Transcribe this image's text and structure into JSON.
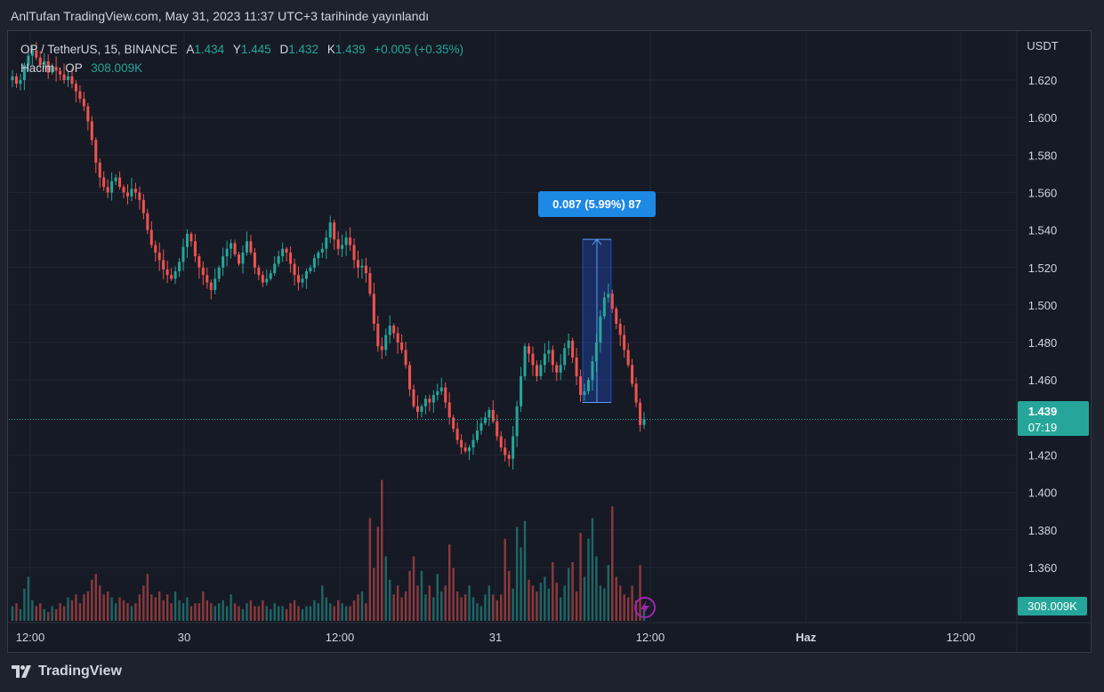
{
  "header": {
    "publish_note": "AnlTufan TradingView.com, May 31, 2023 11:37 UTC+3 tarihinde yayınlandı"
  },
  "legend": {
    "symbol": "OP / TetherUS, 15, BINANCE",
    "open_label": "A",
    "open": "1.434",
    "high_label": "Y",
    "high": "1.445",
    "low_label": "D",
    "low": "1.432",
    "close_label": "K",
    "close": "1.439",
    "change": "+0.005 (+0.35%)",
    "volume_label": "Hacim · OP",
    "volume": "308.009K"
  },
  "price_axis": {
    "unit": "USDT",
    "ticks": [
      "1.620",
      "1.600",
      "1.580",
      "1.560",
      "1.540",
      "1.520",
      "1.500",
      "1.480",
      "1.460",
      "1.420",
      "1.400",
      "1.380",
      "1.360"
    ],
    "last_price": "1.439",
    "countdown": "07:19",
    "volume_badge": "308.009K"
  },
  "time_axis": {
    "ticks": [
      "12:00",
      "30",
      "12:00",
      "31",
      "12:00",
      "Haz",
      "12:00"
    ]
  },
  "measure": {
    "label": "0.087 (5.99%) 87",
    "from": 1.448,
    "to": 1.535
  },
  "brand": {
    "name": "TradingView"
  },
  "colors": {
    "up": "#26a69a",
    "down": "#ef5350",
    "bg": "#161a25",
    "grid": "#232733",
    "measure": "#2962ff"
  },
  "chart_data": {
    "type": "candlestick",
    "interval": "15",
    "y_range": [
      1.335,
      1.64
    ],
    "price_path": [
      1.622,
      1.618,
      1.62,
      1.628,
      1.633,
      1.636,
      1.632,
      1.628,
      1.63,
      1.624,
      1.627,
      1.625,
      1.623,
      1.62,
      1.622,
      1.618,
      1.614,
      1.61,
      1.606,
      1.598,
      1.588,
      1.576,
      1.568,
      1.563,
      1.56,
      1.566,
      1.568,
      1.563,
      1.56,
      1.558,
      1.562,
      1.56,
      1.556,
      1.549,
      1.54,
      1.532,
      1.528,
      1.524,
      1.519,
      1.516,
      1.514,
      1.518,
      1.523,
      1.531,
      1.538,
      1.534,
      1.526,
      1.52,
      1.516,
      1.512,
      1.508,
      1.514,
      1.52,
      1.526,
      1.53,
      1.533,
      1.527,
      1.522,
      1.528,
      1.534,
      1.528,
      1.52,
      1.516,
      1.512,
      1.514,
      1.517,
      1.522,
      1.526,
      1.53,
      1.528,
      1.522,
      1.516,
      1.512,
      1.514,
      1.518,
      1.52,
      1.525,
      1.528,
      1.53,
      1.536,
      1.544,
      1.535,
      1.53,
      1.532,
      1.536,
      1.532,
      1.524,
      1.52,
      1.521,
      1.517,
      1.506,
      1.49,
      1.478,
      1.476,
      1.484,
      1.489,
      1.485,
      1.48,
      1.476,
      1.468,
      1.455,
      1.446,
      1.443,
      1.446,
      1.45,
      1.448,
      1.452,
      1.454,
      1.456,
      1.448,
      1.44,
      1.434,
      1.428,
      1.424,
      1.422,
      1.424,
      1.428,
      1.433,
      1.437,
      1.44,
      1.444,
      1.438,
      1.43,
      1.424,
      1.42,
      1.418,
      1.43,
      1.446,
      1.462,
      1.478,
      1.474,
      1.468,
      1.462,
      1.468,
      1.474,
      1.476,
      1.468,
      1.464,
      1.468,
      1.477,
      1.481,
      1.472,
      1.462,
      1.452,
      1.454,
      1.46,
      1.47,
      1.48,
      1.494,
      1.504,
      1.506,
      1.498,
      1.49,
      1.484,
      1.476,
      1.468,
      1.458,
      1.448,
      1.436,
      1.439
    ],
    "volume_path": [
      0.05,
      0.06,
      0.04,
      0.11,
      0.15,
      0.07,
      0.05,
      0.06,
      0.04,
      0.03,
      0.05,
      0.04,
      0.06,
      0.05,
      0.08,
      0.07,
      0.09,
      0.06,
      0.09,
      0.1,
      0.14,
      0.16,
      0.12,
      0.09,
      0.1,
      0.08,
      0.06,
      0.08,
      0.07,
      0.06,
      0.05,
      0.06,
      0.09,
      0.12,
      0.16,
      0.09,
      0.08,
      0.1,
      0.07,
      0.09,
      0.06,
      0.1,
      0.07,
      0.06,
      0.08,
      0.05,
      0.06,
      0.06,
      0.1,
      0.07,
      0.06,
      0.05,
      0.06,
      0.07,
      0.05,
      0.09,
      0.06,
      0.05,
      0.04,
      0.06,
      0.07,
      0.05,
      0.05,
      0.07,
      0.05,
      0.04,
      0.06,
      0.05,
      0.05,
      0.04,
      0.06,
      0.07,
      0.05,
      0.04,
      0.05,
      0.05,
      0.07,
      0.06,
      0.12,
      0.08,
      0.06,
      0.05,
      0.07,
      0.06,
      0.05,
      0.05,
      0.07,
      0.09,
      0.1,
      0.06,
      0.35,
      0.18,
      0.32,
      0.48,
      0.22,
      0.14,
      0.09,
      0.12,
      0.08,
      0.1,
      0.17,
      0.22,
      0.12,
      0.17,
      0.09,
      0.12,
      0.08,
      0.16,
      0.1,
      0.12,
      0.26,
      0.18,
      0.1,
      0.08,
      0.09,
      0.12,
      0.08,
      0.06,
      0.05,
      0.09,
      0.12,
      0.09,
      0.07,
      0.09,
      0.28,
      0.17,
      0.11,
      0.32,
      0.25,
      0.34,
      0.14,
      0.12,
      0.1,
      0.13,
      0.15,
      0.11,
      0.2,
      0.13,
      0.08,
      0.12,
      0.18,
      0.2,
      0.1,
      0.3,
      0.15,
      0.28,
      0.35,
      0.22,
      0.12,
      0.11,
      0.19,
      0.39,
      0.15,
      0.12,
      0.09,
      0.08,
      0.12,
      0.07,
      0.19,
      0.05
    ],
    "vol_max": 308009
  }
}
